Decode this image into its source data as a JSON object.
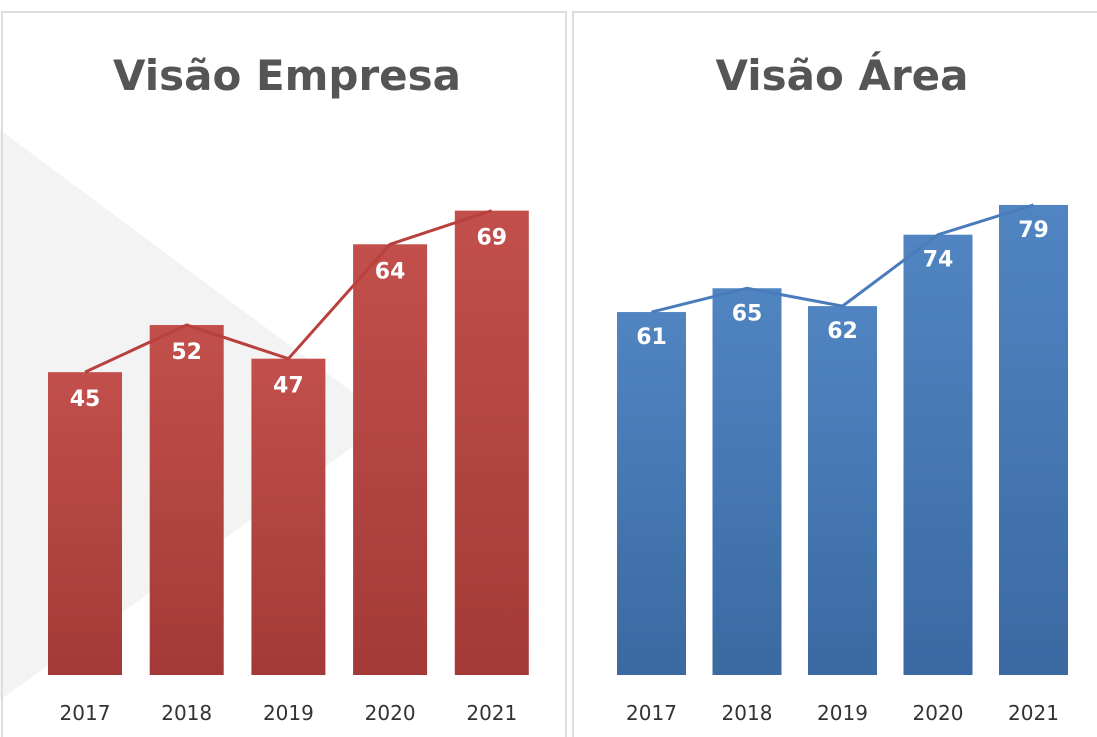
{
  "chart_data": [
    {
      "type": "bar",
      "title": "Visão Empresa",
      "categories": [
        "2017",
        "2018",
        "2019",
        "2020",
        "2021"
      ],
      "values": [
        45,
        52,
        47,
        64,
        69
      ],
      "color": "#c0504d",
      "line_color": "#b8403d",
      "ylim": [
        0,
        100
      ]
    },
    {
      "type": "bar",
      "title": "Visão Área",
      "categories": [
        "2017",
        "2018",
        "2019",
        "2020",
        "2021"
      ],
      "values": [
        61,
        65,
        62,
        74,
        79
      ],
      "color": "#4f81bd",
      "line_color": "#4a7cbb",
      "ylim": [
        0,
        100
      ]
    }
  ]
}
